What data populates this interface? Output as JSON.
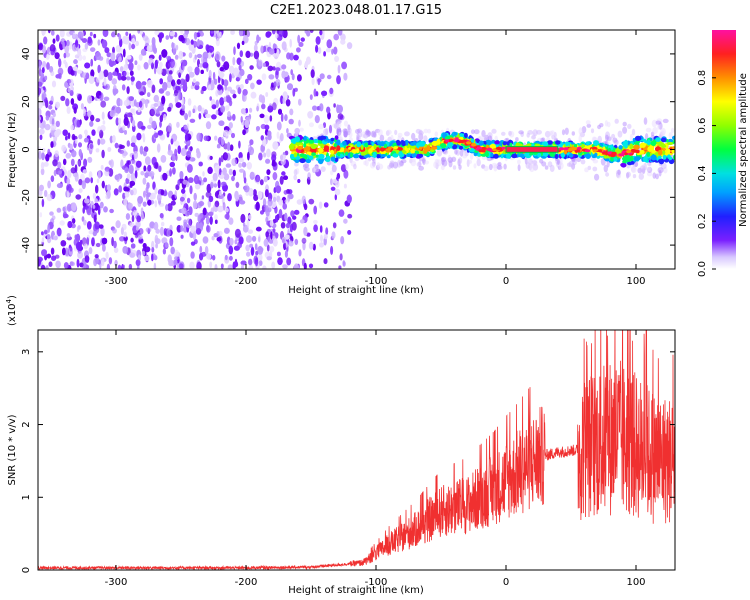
{
  "title": "C2E1.2023.048.01.17.G15",
  "chart_data": [
    {
      "type": "heatmap",
      "xlabel": "Height of straight line (km)",
      "ylabel": "Frequency (Hz)",
      "xlim": [
        -360,
        130
      ],
      "ylim": [
        -50,
        50
      ],
      "xticks": [
        -300,
        -200,
        -100,
        0,
        100
      ],
      "yticks": [
        -40,
        -20,
        0,
        20,
        40
      ],
      "colorbar": {
        "label": "Normalized spectral amplitude",
        "range": [
          0.0,
          1.0
        ],
        "ticks": [
          "0.0",
          "0.2",
          "0.4",
          "0.6",
          "0.8"
        ],
        "colormap": [
          "#ffffff",
          "#e8d8ff",
          "#9b59ff",
          "#6a00ff",
          "#2222ff",
          "#00a0ff",
          "#00e8e8",
          "#00ff60",
          "#a0ff00",
          "#ffff00",
          "#ff9900",
          "#ff2020",
          "#ff1090"
        ]
      },
      "features": {
        "noise_region_x": [
          -360,
          -120
        ],
        "ridge_center_hz": 0,
        "ridge_band_x": [
          -165,
          130
        ]
      }
    },
    {
      "type": "line",
      "xlabel": "Height of straight line (km)",
      "ylabel": "SNR (10 * v/v)",
      "y_multiplier": "(x10",
      "y_multiplier_exp": "4",
      "y_multiplier_close": ")",
      "xlim": [
        -360,
        130
      ],
      "ylim": [
        0,
        3.3
      ],
      "xticks": [
        -300,
        -200,
        -100,
        0,
        100
      ],
      "yticks": [
        0,
        1,
        2,
        3
      ],
      "series": [
        {
          "color": "#f03030",
          "envelope": [
            {
              "x": -360,
              "y": 0.03
            },
            {
              "x": -200,
              "y": 0.03
            },
            {
              "x": -150,
              "y": 0.04
            },
            {
              "x": -110,
              "y": 0.1
            },
            {
              "x": -90,
              "y": 0.35
            },
            {
              "x": -70,
              "y": 0.55
            },
            {
              "x": -50,
              "y": 0.8
            },
            {
              "x": -30,
              "y": 0.9
            },
            {
              "x": -10,
              "y": 1.1
            },
            {
              "x": 10,
              "y": 1.35
            },
            {
              "x": 25,
              "y": 1.55
            },
            {
              "x": 40,
              "y": 1.62
            },
            {
              "x": 55,
              "y": 1.65
            },
            {
              "x": 70,
              "y": 1.75
            },
            {
              "x": 85,
              "y": 1.85
            },
            {
              "x": 100,
              "y": 1.7
            },
            {
              "x": 115,
              "y": 1.55
            },
            {
              "x": 130,
              "y": 1.5
            }
          ],
          "peak": {
            "x": 108,
            "y": 3.3
          }
        }
      ]
    }
  ]
}
